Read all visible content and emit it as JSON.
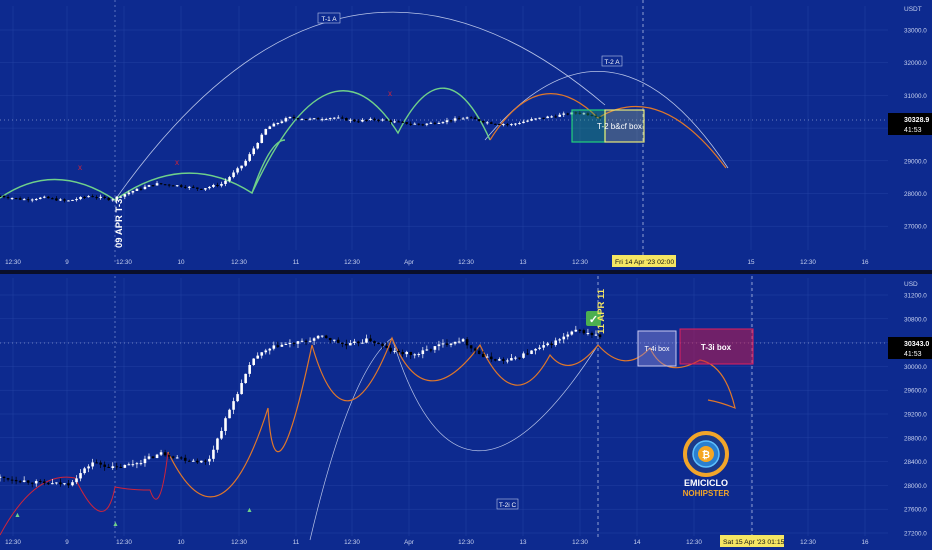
{
  "colors": {
    "background": "#0d2a8f",
    "grid": "#2a46a8",
    "axis_text": "#c8d2f0",
    "cycle_green": "#6fd08a",
    "cycle_orange": "#e0772a",
    "cycle_red": "#d0243a",
    "arc_white": "#b8c4e8",
    "candle_up": "#ffffff",
    "candle_down": "#000000",
    "date_tag_bg": "#f5e663",
    "last_price_bg": "#000000",
    "green_box": "#23b36b",
    "yellow_box": "#e8e87a",
    "red_box": "#c2184b",
    "purple_box": "#8a8ad8",
    "logo_ring": "#f2a52a"
  },
  "top_panel": {
    "currency": "USDT",
    "y_ticks": [
      "33000.0",
      "32000.0",
      "31000.0",
      "30000.0",
      "29000.0",
      "28000.0",
      "27000.0"
    ],
    "last_price": "30328.9",
    "countdown": "41:53",
    "x_ticks": [
      "12:30",
      "9",
      "12:30",
      "10",
      "12:30",
      "11",
      "12:30",
      "Apr",
      "12:30",
      "13",
      "12:30",
      "14",
      "15",
      "12:30",
      "16"
    ],
    "date_tag": "Fri 14 Apr '23   02:00",
    "labels": {
      "t1a": "T-1 A",
      "t2a": "T-2 A",
      "vertical_date": "09 APR T-3",
      "box": "T-2 b&cf box"
    }
  },
  "bottom_panel": {
    "currency": "USD",
    "y_ticks": [
      "31200.0",
      "30800.0",
      "30400.0",
      "30000.0",
      "29600.0",
      "29200.0",
      "28800.0",
      "28400.0",
      "28000.0",
      "27600.0",
      "27200.0"
    ],
    "last_price": "30343.0",
    "countdown": "41:53",
    "x_ticks": [
      "12:30",
      "9",
      "12:30",
      "10",
      "12:30",
      "11",
      "12:30",
      "Apr",
      "12:30",
      "13",
      "12:30",
      "14",
      "12:30",
      "15",
      "12:30",
      "16"
    ],
    "date_tag": "Sat 15 Apr '23   01:15",
    "labels": {
      "t2c": "T-2i C",
      "vertical_date": "11 APR 11",
      "box_small": "T-4i box",
      "box_large": "T-3i box",
      "check": "✓"
    },
    "logo": {
      "line1": "EMICICLO",
      "line2": "NOHIPSTER",
      "symbol": "₿"
    }
  },
  "chart_data": [
    {
      "type": "candlestick",
      "title": "",
      "currency": "USDT",
      "x_time": [
        "Apr 8 12:30",
        "Apr 9",
        "Apr 9 12:30",
        "Apr 10",
        "Apr 10 12:30",
        "Apr 11",
        "Apr 11 12:30",
        "Apr 12",
        "Apr 12 12:30",
        "Apr 13",
        "Apr 13 12:30",
        "Apr 14",
        "Apr 14 12:30",
        "Apr 15",
        "Apr 15 12:30",
        "Apr 16"
      ],
      "price_path": [
        28050,
        27950,
        28000,
        27900,
        28050,
        27950,
        28200,
        28400,
        28350,
        28250,
        28400,
        29000,
        30000,
        30300,
        30250,
        30300,
        30200,
        30250,
        30150,
        30100,
        30200,
        30300,
        30150,
        30100,
        30250,
        30350,
        30450,
        30330
      ],
      "ylim": [
        26500,
        33500
      ],
      "last_price": 30328.9,
      "grid": true
    },
    {
      "type": "candlestick",
      "title": "",
      "currency": "USD",
      "x_time": [
        "Apr 8 12:30",
        "Apr 9",
        "Apr 9 12:30",
        "Apr 10",
        "Apr 10 12:30",
        "Apr 11",
        "Apr 11 12:30",
        "Apr 12",
        "Apr 12 12:30",
        "Apr 13",
        "Apr 13 12:30",
        "Apr 14",
        "Apr 14 12:30",
        "Apr 15",
        "Apr 15 12:30",
        "Apr 16"
      ],
      "price_path": [
        28050,
        28000,
        27950,
        27950,
        28300,
        28200,
        28300,
        28450,
        28350,
        28300,
        29200,
        30000,
        30200,
        30250,
        30350,
        30200,
        30300,
        30100,
        30050,
        30200,
        30300,
        30000,
        29950,
        30100,
        30250,
        30450,
        30343
      ],
      "ylim": [
        27100,
        31300
      ],
      "last_price": 30343.0,
      "grid": true
    }
  ]
}
